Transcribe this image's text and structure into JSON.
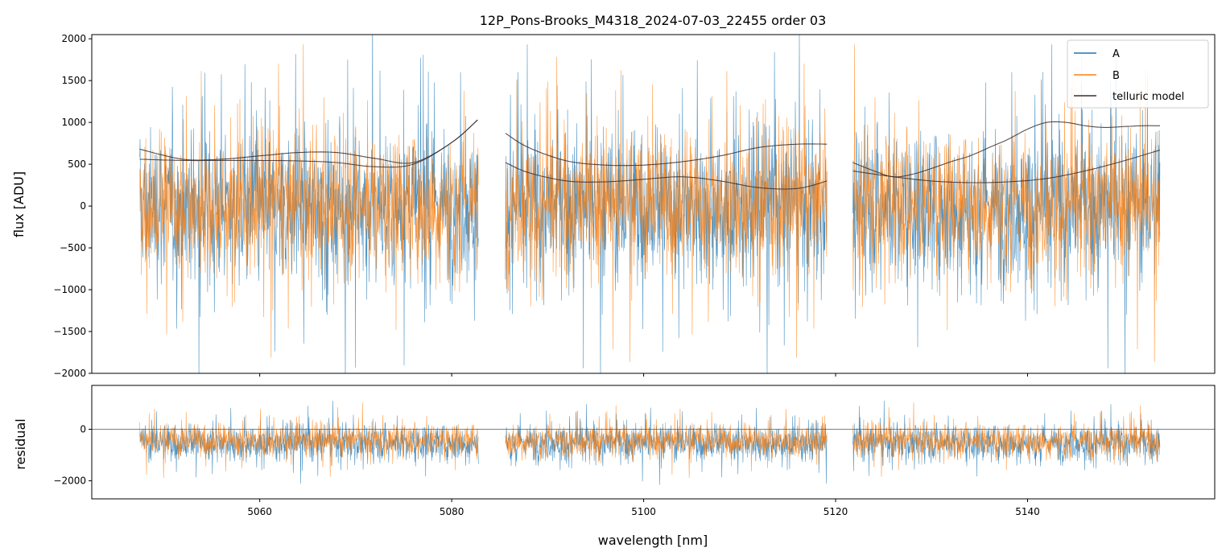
{
  "title": "12P_Pons-Brooks_M4318_2024-07-03_22455  order 03",
  "colors": {
    "A": "#1f77b4",
    "B": "#ff7f0e",
    "telluric": "#3b2f2f",
    "axis": "#000000"
  },
  "chart_data": [
    {
      "type": "line",
      "panel": "main",
      "title": "12P_Pons-Brooks_M4318_2024-07-03_22455  order 03",
      "xlabel": "",
      "ylabel": "flux [ADU]",
      "xlim": [
        5042.5,
        5159.5
      ],
      "ylim": [
        -2000,
        2050
      ],
      "yticks": [
        -2000,
        -1500,
        -1000,
        -500,
        0,
        500,
        1000,
        1500,
        2000
      ],
      "ytick_labels": [
        "−2000",
        "−1500",
        "−1000",
        "−500",
        "0",
        "500",
        "1000",
        "1500",
        "2000"
      ],
      "xticks": [
        5060,
        5080,
        5100,
        5120,
        5140
      ],
      "segments": [
        [
          5047.5,
          5082.8
        ],
        [
          5085.6,
          5119.1
        ],
        [
          5121.8,
          5153.8
        ]
      ],
      "legend": {
        "position": "top-right",
        "entries": [
          "A",
          "B",
          "telluric model"
        ]
      },
      "series": [
        {
          "name": "A",
          "description": "noisy spectrum, centered near 0 with spread ~±1500 ADU"
        },
        {
          "name": "B",
          "description": "noisy spectrum, centered near 0 with spread ~±1500 ADU"
        },
        {
          "name": "telluric model",
          "curves": [
            {
              "x": [
                5047.5,
                5052,
                5056,
                5060,
                5064,
                5068,
                5072,
                5076,
                5080,
                5082.7
              ],
              "y": [
                680,
                560,
                560,
                600,
                640,
                640,
                570,
                520,
                760,
                1030
              ]
            },
            {
              "x": [
                5047.5,
                5052,
                5056,
                5060,
                5064,
                5068,
                5072,
                5076,
                5080,
                5082.7
              ],
              "y": [
                560,
                545,
                545,
                545,
                540,
                520,
                470,
                500,
                760,
                1030
              ]
            },
            {
              "x": [
                5085.6,
                5088,
                5092,
                5096,
                5100,
                5104,
                5108,
                5112,
                5116,
                5119.1
              ],
              "y": [
                870,
                700,
                540,
                490,
                490,
                530,
                600,
                700,
                740,
                740
              ]
            },
            {
              "x": [
                5085.6,
                5088,
                5092,
                5096,
                5100,
                5104,
                5108,
                5112,
                5116,
                5119.1
              ],
              "y": [
                520,
                400,
                300,
                290,
                320,
                350,
                300,
                220,
                210,
                300
              ]
            },
            {
              "x": [
                5121.8,
                5124,
                5126,
                5128,
                5130,
                5132,
                5134,
                5136,
                5138,
                5140,
                5142,
                5144,
                5146,
                5148,
                5150,
                5152,
                5153.8
              ],
              "y": [
                520,
                420,
                350,
                380,
                450,
                530,
                600,
                700,
                800,
                920,
                1000,
                1000,
                960,
                940,
                950,
                960,
                960
              ]
            },
            {
              "x": [
                5121.8,
                5126,
                5130,
                5134,
                5138,
                5142,
                5146,
                5150,
                5153.8
              ],
              "y": [
                420,
                350,
                300,
                280,
                290,
                330,
                420,
                540,
                670
              ]
            }
          ]
        }
      ]
    },
    {
      "type": "line",
      "panel": "residual",
      "xlabel": "wavelength [nm]",
      "ylabel": "residual",
      "xlim": [
        5042.5,
        5159.5
      ],
      "ylim": [
        -2700,
        1700
      ],
      "yticks": [
        -2000,
        0
      ],
      "ytick_labels": [
        "−2000",
        "0"
      ],
      "xticks": [
        5060,
        5080,
        5100,
        5120,
        5140
      ],
      "xtick_labels": [
        "5060",
        "5080",
        "5100",
        "5120",
        "5140"
      ],
      "hline": 0,
      "series": [
        {
          "name": "A",
          "description": "residual, centered near −500 with spread ~±1500"
        },
        {
          "name": "B",
          "description": "residual, centered near −500 with spread ~±1500"
        }
      ]
    }
  ]
}
